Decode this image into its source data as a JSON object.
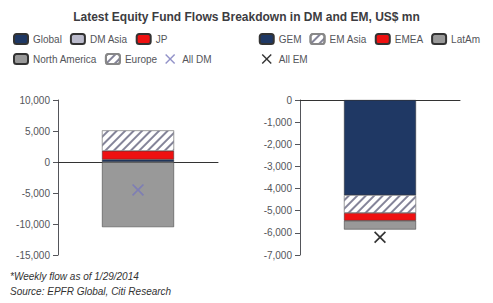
{
  "chart_data": [
    {
      "type": "bar",
      "title": "Latest Equity Fund Flows Breakdown in DM and EM, US$ mn",
      "annotations": [
        "*Weekly flow as of 1/29/2014",
        "Source: EPFR Global, Citi Research"
      ],
      "categories": [
        null
      ],
      "stacked": true,
      "series": [
        {
          "name": "Global",
          "color": "#1f3864",
          "values": [
            400
          ]
        },
        {
          "name": "DM Asia",
          "color": "#bbbbcc",
          "values": [
            null
          ]
        },
        {
          "name": "JP",
          "color": "#ee1111",
          "values": [
            1400
          ]
        },
        {
          "name": "North America",
          "color": "#999999",
          "values": [
            -10500
          ]
        },
        {
          "name": "Europe",
          "color": "#ffffff",
          "values": [
            3300
          ]
        },
        {
          "name": "All DM",
          "type": "scatter",
          "marker": "x",
          "color": "#7777bb",
          "values": [
            -4500
          ]
        }
      ],
      "ylim": [
        -15000,
        10000
      ],
      "yticks": [
        {
          "value": -15000,
          "label": "-15,000"
        },
        {
          "value": -10000,
          "label": "-10,000"
        },
        {
          "value": -5000,
          "label": "-5,000"
        },
        0,
        {
          "value": 5000,
          "label": "5,000"
        },
        {
          "value": 10000,
          "label": "10,000"
        }
      ],
      "grid": false,
      "tick_labels": "y",
      "legend": "upper left"
    },
    {
      "type": "bar",
      "categories": [
        null
      ],
      "stacked": true,
      "series": [
        {
          "name": "GEM",
          "color": "#1f3864",
          "values": [
            -4300
          ]
        },
        {
          "name": "EM Asia",
          "color": "#ffffff",
          "values": [
            -800
          ]
        },
        {
          "name": "EMEA",
          "color": "#ee1111",
          "values": [
            -350
          ]
        },
        {
          "name": "LatAm",
          "color": "#999999",
          "values": [
            -400
          ]
        },
        {
          "name": "All EM",
          "type": "scatter",
          "marker": "x",
          "color": "#000000",
          "values": [
            -6200
          ]
        }
      ],
      "ylim": [
        -7000,
        0
      ],
      "yticks": [
        0,
        {
          "value": -1000,
          "label": "-1,000"
        },
        {
          "value": -2000,
          "label": "-2,000"
        },
        {
          "value": -3000,
          "label": "-3,000"
        },
        {
          "value": -4000,
          "label": "-4,000"
        },
        {
          "value": -5000,
          "label": "-5,000"
        },
        {
          "value": -6000,
          "label": "-6,000"
        },
        {
          "value": -7000,
          "label": "-7,000"
        }
      ],
      "grid": false,
      "tick_labels": "y",
      "legend": "upper right"
    }
  ]
}
